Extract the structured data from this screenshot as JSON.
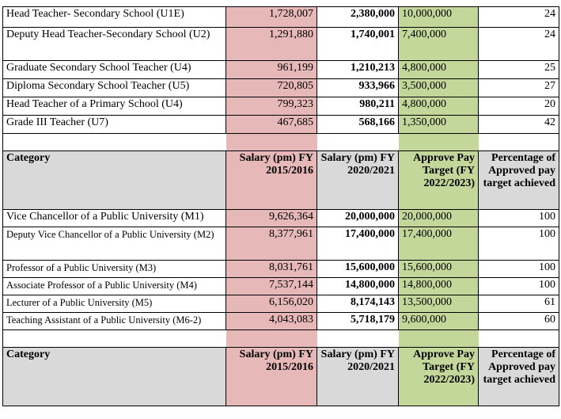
{
  "colors": {
    "salary_2015_fill": "#e6b8b7",
    "approve_target_fill": "#c4d79b",
    "header_fill": "#d9d9d9"
  },
  "headers": {
    "category": "Category",
    "salary_2015": "Salary (pm) FY 2015/2016",
    "salary_2020": "Salary (pm) FY 2020/2021",
    "approve_target": "Approve Pay Target (FY 2022/2023)",
    "pct_achieved": "Percentage of Approved pay target achieved"
  },
  "secondary_rows": [
    {
      "category": "Head Teacher- Secondary School (U1E)",
      "s2015": "1,728,007",
      "s2020": "2,380,000",
      "target": "10,000,000",
      "pct": "24"
    },
    {
      "category": "Deputy Head Teacher-Secondary School (U2)",
      "s2015": "1,291,880",
      "s2020": "1,740,001",
      "target": "7,400,000",
      "pct": "24"
    },
    {
      "category": "Graduate Secondary School Teacher (U4)",
      "s2015": "961,199",
      "s2020": "1,210,213",
      "target": "4,800,000",
      "pct": "25"
    },
    {
      "category": "Diploma Secondary School Teacher (U5)",
      "s2015": "720,805",
      "s2020": "933,966",
      "target": "3,500,000",
      "pct": "27"
    },
    {
      "category": "Head Teacher of a Primary School (U4)",
      "s2015": "799,323",
      "s2020": "980,211",
      "target": "4,800,000",
      "pct": "20"
    },
    {
      "category": "Grade III Teacher (U7)",
      "s2015": "467,685",
      "s2020": "568,166",
      "target": "1,350,000",
      "pct": "42"
    }
  ],
  "university_rows": [
    {
      "category": "Vice Chancellor of a Public University (M1)",
      "s2015": "9,626,364",
      "s2020": "20,000,000",
      "target": "20,000,000",
      "pct": "100"
    },
    {
      "category": "Deputy Vice Chancellor of a Public University (M2)",
      "s2015": "8,377,961",
      "s2020": "17,400,000",
      "target": "17,400,000",
      "pct": "100"
    },
    {
      "category": "Professor of a Public University (M3)",
      "s2015": "8,031,761",
      "s2020": "15,600,000",
      "target": "15,600,000",
      "pct": "100"
    },
    {
      "category": "Associate Professor of a Public University (M4)",
      "s2015": "7,537,144",
      "s2020": "14,800,000",
      "target": "14,800,000",
      "pct": "100"
    },
    {
      "category": "Lecturer of a Public University (M5)",
      "s2015": "6,156,020",
      "s2020": "8,174,143",
      "target": "13,500,000",
      "pct": "61"
    },
    {
      "category": "Teaching Assistant of a Public University (M6-2)",
      "s2015": "4,043,083",
      "s2020": "5,718,179",
      "target": "9,600,000",
      "pct": "60"
    }
  ]
}
